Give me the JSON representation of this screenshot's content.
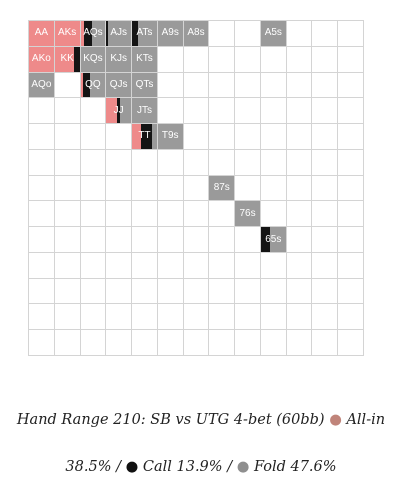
{
  "chart_data": {
    "type": "heatmap",
    "title_line_1": "Hand Range 210: SB vs UTG 4-bet (60bb)",
    "legend": {
      "allin_label": "All-in",
      "allin_pct": "38.5%",
      "call_label": "Call",
      "call_pct": "13.9%",
      "fold_label": "Fold",
      "fold_pct": "47.6%",
      "dot_glyph": "●",
      "separator": "/"
    },
    "colors": {
      "allin": "#ee8a8a",
      "call": "#141414",
      "fold": "#9a9a9a",
      "allin_dot": "#c0847a",
      "call_dot": "#111111",
      "fold_dot": "#8f8f8f"
    },
    "rows": 13,
    "cols": 13,
    "cells": [
      {
        "hand": "AA",
        "row": 0,
        "col": 0,
        "allin": 1.0,
        "call": 0.0,
        "fold": 0.0
      },
      {
        "hand": "AKs",
        "row": 0,
        "col": 1,
        "allin": 1.0,
        "call": 0.0,
        "fold": 0.0
      },
      {
        "hand": "AQs",
        "row": 0,
        "col": 2,
        "allin": 0.15,
        "call": 0.3,
        "fold": 0.55
      },
      {
        "hand": "AJs",
        "row": 0,
        "col": 3,
        "allin": 0.0,
        "call": 0.05,
        "fold": 0.95
      },
      {
        "hand": "ATs",
        "row": 0,
        "col": 4,
        "allin": 0.0,
        "call": 0.25,
        "fold": 0.75
      },
      {
        "hand": "A9s",
        "row": 0,
        "col": 5,
        "allin": 0.0,
        "call": 0.0,
        "fold": 1.0
      },
      {
        "hand": "A8s",
        "row": 0,
        "col": 6,
        "allin": 0.0,
        "call": 0.0,
        "fold": 1.0
      },
      {
        "hand": "A5s",
        "row": 0,
        "col": 9,
        "allin": 0.0,
        "call": 0.0,
        "fold": 1.0
      },
      {
        "hand": "AKo",
        "row": 1,
        "col": 0,
        "allin": 1.0,
        "call": 0.0,
        "fold": 0.0
      },
      {
        "hand": "KK",
        "row": 1,
        "col": 1,
        "allin": 0.78,
        "call": 0.22,
        "fold": 0.0
      },
      {
        "hand": "KQs",
        "row": 1,
        "col": 2,
        "allin": 0.0,
        "call": 0.0,
        "fold": 1.0
      },
      {
        "hand": "KJs",
        "row": 1,
        "col": 3,
        "allin": 0.0,
        "call": 0.0,
        "fold": 1.0
      },
      {
        "hand": "KTs",
        "row": 1,
        "col": 4,
        "allin": 0.0,
        "call": 0.0,
        "fold": 1.0
      },
      {
        "hand": "AQo",
        "row": 2,
        "col": 0,
        "allin": 0.0,
        "call": 0.0,
        "fold": 1.0
      },
      {
        "hand": "QQ",
        "row": 2,
        "col": 2,
        "allin": 0.1,
        "call": 0.3,
        "fold": 0.6
      },
      {
        "hand": "QJs",
        "row": 2,
        "col": 3,
        "allin": 0.0,
        "call": 0.0,
        "fold": 1.0
      },
      {
        "hand": "QTs",
        "row": 2,
        "col": 4,
        "allin": 0.0,
        "call": 0.0,
        "fold": 1.0
      },
      {
        "hand": "JJ",
        "row": 3,
        "col": 3,
        "allin": 0.45,
        "call": 0.1,
        "fold": 0.45
      },
      {
        "hand": "JTs",
        "row": 3,
        "col": 4,
        "allin": 0.0,
        "call": 0.0,
        "fold": 1.0
      },
      {
        "hand": "TT",
        "row": 4,
        "col": 4,
        "allin": 0.38,
        "call": 0.42,
        "fold": 0.2
      },
      {
        "hand": "T9s",
        "row": 4,
        "col": 5,
        "allin": 0.0,
        "call": 0.0,
        "fold": 1.0
      },
      {
        "hand": "87s",
        "row": 6,
        "col": 7,
        "allin": 0.0,
        "call": 0.0,
        "fold": 1.0
      },
      {
        "hand": "76s",
        "row": 7,
        "col": 8,
        "allin": 0.0,
        "call": 0.0,
        "fold": 1.0
      },
      {
        "hand": "65s",
        "row": 8,
        "col": 9,
        "allin": 0.0,
        "call": 0.35,
        "fold": 0.65
      }
    ]
  }
}
